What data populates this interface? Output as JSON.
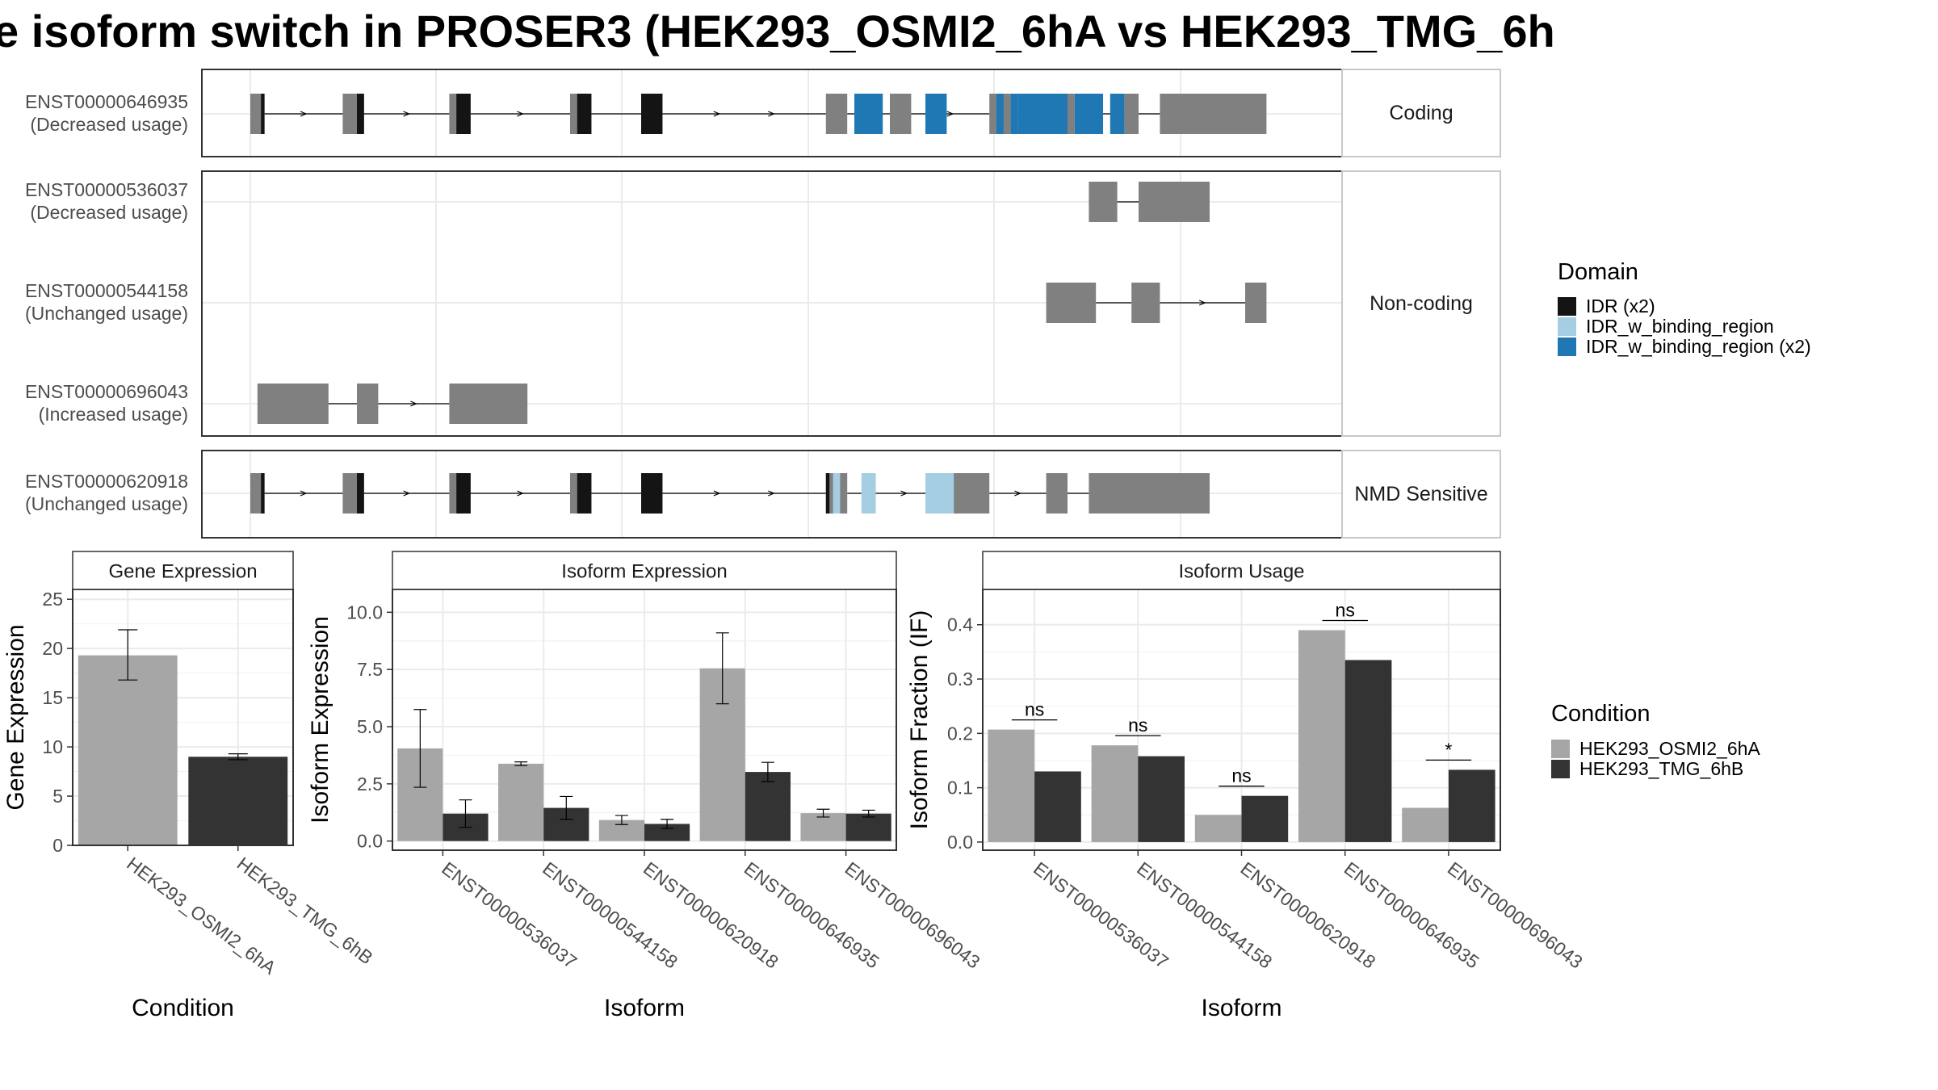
{
  "title": "e isoform switch in PROSER3 (HEK293_OSMI2_6hA vs HEK293_TMG_6h",
  "colors": {
    "exon": "#808080",
    "idr": "#141414",
    "idr_w_binding_region": "#a6cee3",
    "idr_w_binding_region_x2": "#1f78b4",
    "cond_a": "#a6a6a6",
    "cond_b": "#333333",
    "grid": "#ebebeb",
    "panel_border": "#333333"
  },
  "structure_plot": {
    "sections": [
      {
        "label": "Coding",
        "rows": [
          {
            "id": "ENST00000646935",
            "usage": "(Decreased usage)",
            "exons": [
              [
                0,
                2
              ],
              [
                13,
                16
              ],
              [
                28,
                31
              ],
              [
                45,
                48
              ],
              [
                55,
                58
              ],
              [
                81,
                84
              ],
              [
                90,
                93
              ],
              [
                104,
                107
              ],
              [
                114,
                116
              ],
              [
                123,
                125
              ],
              [
                128,
                143
              ]
            ],
            "domains": [
              {
                "type": "idr",
                "ranges": [
                  [
                    1.5,
                    2
                  ],
                  [
                    15,
                    16
                  ],
                  [
                    29,
                    31
                  ],
                  [
                    46,
                    48
                  ],
                  [
                    55,
                    58
                  ]
                ]
              },
              {
                "type": "idr_w_binding_region_x2",
                "ranges": [
                  [
                    85,
                    89
                  ],
                  [
                    95,
                    98
                  ],
                  [
                    105,
                    106
                  ],
                  [
                    107,
                    108
                  ],
                  [
                    108,
                    115
                  ],
                  [
                    116,
                    120
                  ],
                  [
                    121,
                    123
                  ]
                ]
              }
            ]
          }
        ]
      },
      {
        "label": "Non-coding",
        "rows": [
          {
            "id": "ENST00000536037",
            "usage": "(Decreased usage)",
            "exons": [
              [
                118,
                122
              ],
              [
                125,
                135
              ]
            ],
            "domains": []
          },
          {
            "id": "ENST00000544158",
            "usage": "(Unchanged usage)",
            "exons": [
              [
                112,
                119
              ],
              [
                124,
                128
              ],
              [
                140,
                143
              ]
            ],
            "domains": []
          },
          {
            "id": "ENST00000696043",
            "usage": "(Increased usage)",
            "exons": [
              [
                1,
                11
              ],
              [
                15,
                18
              ],
              [
                28,
                39
              ]
            ],
            "domains": []
          }
        ]
      },
      {
        "label": "NMD Sensitive",
        "rows": [
          {
            "id": "ENST00000620918",
            "usage": "(Unchanged usage)",
            "exons": [
              [
                0,
                2
              ],
              [
                13,
                16
              ],
              [
                28,
                31
              ],
              [
                45,
                48
              ],
              [
                55,
                58
              ],
              [
                81,
                84
              ],
              [
                87,
                88
              ],
              [
                96,
                104
              ],
              [
                112,
                115
              ],
              [
                118,
                135
              ]
            ],
            "domains": [
              {
                "type": "idr",
                "ranges": [
                  [
                    1.5,
                    2
                  ],
                  [
                    15,
                    16
                  ],
                  [
                    29,
                    31
                  ],
                  [
                    46,
                    48
                  ],
                  [
                    55,
                    58
                  ],
                  [
                    81,
                    81.5
                  ]
                ]
              },
              {
                "type": "idr_w_binding_region",
                "ranges": [
                  [
                    82,
                    83
                  ],
                  [
                    86,
                    88
                  ],
                  [
                    95,
                    99
                  ]
                ]
              }
            ]
          }
        ]
      }
    ]
  },
  "legend_domain": {
    "title": "Domain",
    "items": [
      {
        "label": "IDR (x2)",
        "color": "#141414"
      },
      {
        "label": "IDR_w_binding_region",
        "color": "#a6cee3"
      },
      {
        "label": "IDR_w_binding_region (x2)",
        "color": "#1f78b4"
      }
    ]
  },
  "legend_condition": {
    "title": "Condition",
    "items": [
      {
        "label": "HEK293_OSMI2_6hA",
        "color": "#a6a6a6"
      },
      {
        "label": "HEK293_TMG_6hB",
        "color": "#333333"
      }
    ]
  },
  "chart_data": [
    {
      "type": "bar",
      "title": "Gene Expression",
      "xlabel": "Condition",
      "ylabel": "Gene Expression",
      "categories": [
        "HEK293_OSMI2_6hA",
        "HEK293_TMG_6hB"
      ],
      "values": [
        19.3,
        9.0
      ],
      "error_low": [
        16.8,
        8.7
      ],
      "error_high": [
        21.9,
        9.3
      ],
      "ylim": [
        0,
        26
      ],
      "yticks": [
        0,
        5,
        10,
        15,
        20,
        25
      ],
      "ytick_labels": [
        "0",
        "5",
        "10",
        "15",
        "20",
        "25"
      ]
    },
    {
      "type": "bar",
      "title": "Isoform Expression",
      "xlabel": "Isoform",
      "ylabel": "Isoform Expression",
      "categories": [
        "ENST00000536037",
        "ENST00000544158",
        "ENST00000620918",
        "ENST00000646935",
        "ENST00000696043"
      ],
      "series": [
        {
          "name": "HEK293_OSMI2_6hA",
          "values": [
            4.05,
            3.38,
            0.92,
            7.55,
            1.22
          ],
          "error_low": [
            2.35,
            3.3,
            0.72,
            6.0,
            1.05
          ],
          "error_high": [
            5.75,
            3.46,
            1.12,
            9.1,
            1.39
          ]
        },
        {
          "name": "HEK293_TMG_6hB",
          "values": [
            1.2,
            1.45,
            0.75,
            3.02,
            1.2
          ],
          "error_low": [
            0.6,
            0.95,
            0.55,
            2.6,
            1.05
          ],
          "error_high": [
            1.8,
            1.95,
            0.95,
            3.44,
            1.35
          ]
        }
      ],
      "ylim": [
        -0.4,
        11.0
      ],
      "yticks": [
        0,
        2.5,
        5,
        7.5,
        10
      ],
      "ytick_labels": [
        "0.0",
        "2.5",
        "5.0",
        "7.5",
        "10.0"
      ]
    },
    {
      "type": "bar",
      "title": "Isoform Usage",
      "xlabel": "Isoform",
      "ylabel": "Isoform Fraction (IF)",
      "categories": [
        "ENST00000536037",
        "ENST00000544158",
        "ENST00000620918",
        "ENST00000646935",
        "ENST00000696043"
      ],
      "series": [
        {
          "name": "HEK293_OSMI2_6hA",
          "values": [
            0.207,
            0.178,
            0.05,
            0.39,
            0.063
          ]
        },
        {
          "name": "HEK293_TMG_6hB",
          "values": [
            0.13,
            0.158,
            0.085,
            0.335,
            0.133
          ]
        }
      ],
      "significance": [
        "ns",
        "ns",
        "ns",
        "ns",
        "*"
      ],
      "ylim": [
        -0.015,
        0.465
      ],
      "yticks": [
        0,
        0.1,
        0.2,
        0.3,
        0.4
      ],
      "ytick_labels": [
        "0.0",
        "0.1",
        "0.2",
        "0.3",
        "0.4"
      ]
    }
  ]
}
